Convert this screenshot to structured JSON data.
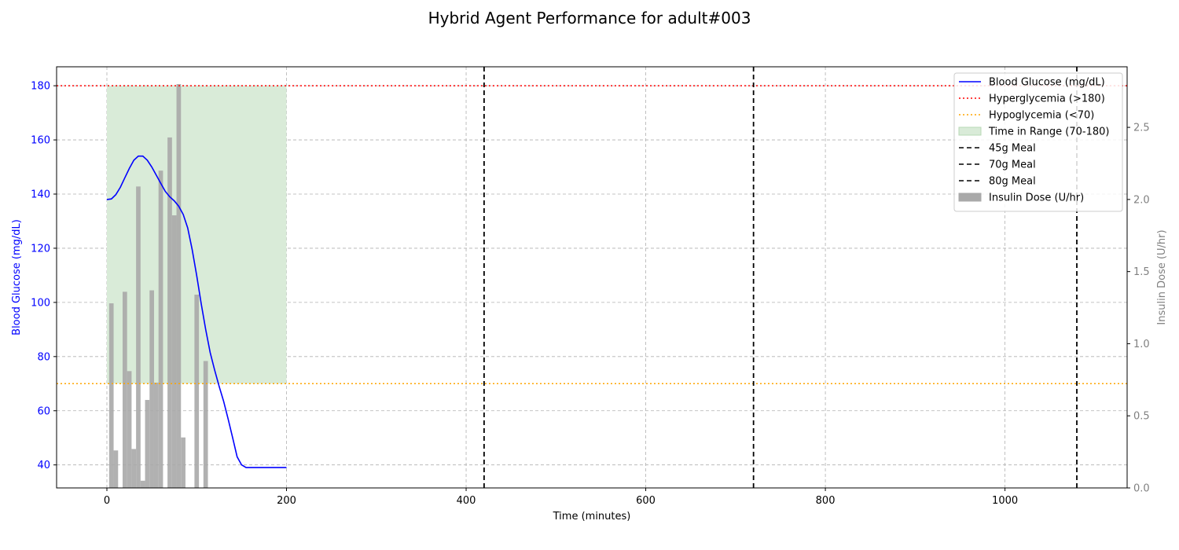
{
  "chart_data": {
    "type": "line",
    "title": "Hybrid Agent Performance for adult#003",
    "xlabel": "Time (minutes)",
    "ylabel": "Blood Glucose (mg/dL)",
    "y2label": "Insulin Dose (U/hr)",
    "xlim": [
      -56,
      1136
    ],
    "ylim": [
      31.5,
      187
    ],
    "y2lim": [
      0,
      2.92
    ],
    "xticks": [
      0,
      200,
      400,
      600,
      800,
      1000
    ],
    "yticks": [
      40,
      60,
      80,
      100,
      120,
      140,
      160,
      180
    ],
    "y2ticks": [
      0.0,
      0.5,
      1.0,
      1.5,
      2.0,
      2.5
    ],
    "grid": true,
    "legend_position": "top-right",
    "colors": {
      "glucose": "#0000ff",
      "hyper": "#ff0000",
      "hypo": "#ffa500",
      "range_fill": "#d9ebd8",
      "meal": "#000000",
      "insulin": "#a9a9a9",
      "y2_axis": "#808080"
    },
    "glucose_series": {
      "name": "Blood Glucose (mg/dL)",
      "x": [
        0,
        5,
        10,
        15,
        20,
        25,
        30,
        35,
        40,
        45,
        50,
        55,
        60,
        65,
        70,
        75,
        80,
        85,
        90,
        95,
        100,
        105,
        110,
        115,
        120,
        125,
        130,
        135,
        140,
        145,
        150,
        155,
        160,
        165,
        170,
        175,
        180,
        185,
        190,
        195,
        200
      ],
      "y": [
        138,
        138.2,
        139.8,
        142.5,
        146,
        149.5,
        152.5,
        154,
        154,
        152.5,
        150,
        147,
        144,
        141,
        139,
        137.5,
        135.5,
        132.5,
        127.5,
        119.5,
        110,
        99.5,
        90,
        81.5,
        75,
        69,
        63.5,
        57,
        50,
        43,
        40,
        39,
        39,
        39,
        39,
        39,
        39,
        39,
        39,
        39,
        39
      ]
    },
    "insulin_series": {
      "name": "Insulin Dose (U/hr)",
      "x": [
        5,
        10,
        20,
        25,
        30,
        35,
        40,
        45,
        50,
        55,
        60,
        70,
        75,
        80,
        85,
        100,
        110
      ],
      "values": [
        1.28,
        0.26,
        1.36,
        0.81,
        0.27,
        2.09,
        0.05,
        0.61,
        1.37,
        0.73,
        2.2,
        2.43,
        1.89,
        2.8,
        0.35,
        1.34,
        0.88
      ],
      "bar_width_minutes": 5
    },
    "thresholds": [
      {
        "name": "Hyperglycemia (>180)",
        "y": 180,
        "color": "#ff0000"
      },
      {
        "name": "Hypoglycemia (<70)",
        "y": 70,
        "color": "#ffa500"
      }
    ],
    "range_band": {
      "name": "Time in Range (70-180)",
      "x0": 0,
      "x1": 200,
      "y0": 70,
      "y1": 180
    },
    "meals": [
      {
        "name": "45g Meal",
        "x": 420
      },
      {
        "name": "70g Meal",
        "x": 720
      },
      {
        "name": "80g Meal",
        "x": 1080
      }
    ],
    "legend": [
      "Blood Glucose (mg/dL)",
      "Hyperglycemia (>180)",
      "Hypoglycemia (<70)",
      "Time in Range (70-180)",
      "45g Meal",
      "70g Meal",
      "80g Meal",
      "Insulin Dose (U/hr)"
    ]
  }
}
